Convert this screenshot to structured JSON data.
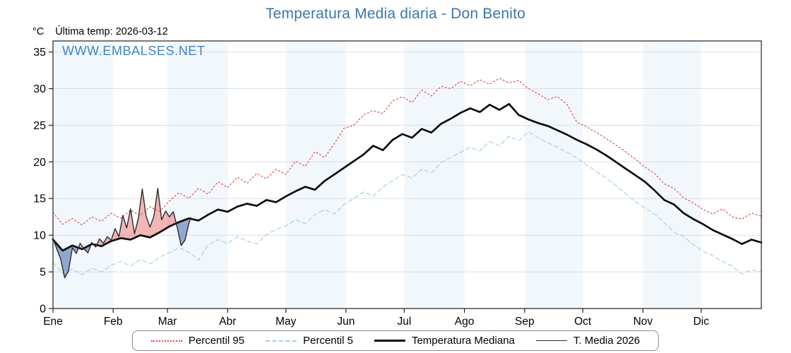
{
  "page": {
    "title": "Temperatura Media diaria - Don Benito",
    "unit_label": "°C",
    "last_temp_label": "Última temp: 2026-03-12",
    "watermark": "WWW.EMBALSES.NET"
  },
  "colors": {
    "title": "#3a76ad",
    "watermark": "#4285c4",
    "band": "#e9f2fa",
    "grid": "#d9dee3",
    "axis": "#222222",
    "fill_above": "rgba(230,110,110,0.5)",
    "fill_below": "rgba(90,125,185,0.65)"
  },
  "chart_data": {
    "type": "line",
    "title": "Temperatura Media diaria - Don Benito",
    "xlabel": "",
    "ylabel": "°C",
    "ylim": [
      0,
      36.5
    ],
    "y_ticks": [
      0,
      5,
      10,
      15,
      20,
      25,
      30,
      35
    ],
    "x_unit": "day-of-year",
    "x_range": [
      0,
      365
    ],
    "grid": "horizontal",
    "legend_position": "bottom",
    "categories": [
      "Ene",
      "Feb",
      "Mar",
      "Abr",
      "May",
      "Jun",
      "Jul",
      "Ago",
      "Sep",
      "Oct",
      "Nov",
      "Dic"
    ],
    "month_start_days": [
      0,
      31,
      59,
      90,
      120,
      151,
      181,
      212,
      243,
      273,
      304,
      334
    ],
    "series": [
      {
        "name": "Percentil 95",
        "style": "dotted",
        "color": "#d64545",
        "width": 1.1,
        "x": [
          0,
          5,
          10,
          15,
          20,
          25,
          30,
          35,
          40,
          45,
          50,
          55,
          60,
          65,
          70,
          75,
          80,
          85,
          90,
          95,
          100,
          105,
          110,
          115,
          120,
          125,
          130,
          135,
          140,
          145,
          150,
          155,
          160,
          165,
          170,
          175,
          180,
          185,
          190,
          195,
          200,
          205,
          210,
          215,
          220,
          225,
          230,
          235,
          240,
          245,
          250,
          255,
          260,
          265,
          270,
          275,
          280,
          285,
          290,
          295,
          300,
          305,
          310,
          315,
          320,
          325,
          330,
          335,
          340,
          345,
          350,
          355,
          360,
          365
        ],
        "y": [
          13.1,
          11.5,
          12.3,
          11.4,
          12.5,
          11.9,
          13.0,
          12.3,
          13.4,
          12.7,
          13.9,
          13.2,
          14.7,
          15.8,
          15.0,
          16.4,
          15.6,
          17.3,
          16.5,
          17.9,
          17.1,
          18.4,
          17.7,
          19.0,
          18.3,
          20.1,
          19.4,
          21.4,
          20.6,
          22.5,
          24.6,
          25.0,
          26.4,
          27.0,
          26.6,
          28.3,
          28.9,
          28.1,
          29.8,
          29.0,
          30.3,
          30.0,
          31.0,
          30.4,
          31.2,
          30.6,
          31.4,
          30.8,
          31.1,
          30.0,
          29.3,
          28.5,
          28.9,
          27.8,
          25.4,
          24.8,
          24.0,
          23.2,
          22.3,
          21.4,
          20.4,
          19.3,
          18.4,
          17.0,
          16.4,
          15.1,
          14.4,
          13.5,
          12.9,
          13.6,
          12.5,
          12.2,
          13.0,
          12.6
        ]
      },
      {
        "name": "Percentil 5",
        "style": "dashed",
        "color": "#a5d2e4",
        "width": 1.2,
        "x": [
          0,
          5,
          10,
          15,
          20,
          25,
          30,
          35,
          40,
          45,
          50,
          55,
          60,
          65,
          70,
          75,
          80,
          85,
          90,
          95,
          100,
          105,
          110,
          115,
          120,
          125,
          130,
          135,
          140,
          145,
          150,
          155,
          160,
          165,
          170,
          175,
          180,
          185,
          190,
          195,
          200,
          205,
          210,
          215,
          220,
          225,
          230,
          235,
          240,
          245,
          250,
          255,
          260,
          265,
          270,
          275,
          280,
          285,
          290,
          295,
          300,
          305,
          310,
          315,
          320,
          325,
          330,
          335,
          340,
          345,
          350,
          355,
          360,
          365
        ],
        "y": [
          6.3,
          4.8,
          5.4,
          4.6,
          5.5,
          5.0,
          5.9,
          6.4,
          5.8,
          6.7,
          6.1,
          7.0,
          7.6,
          8.3,
          7.7,
          6.6,
          8.7,
          9.4,
          8.9,
          9.8,
          9.2,
          8.8,
          10.1,
          10.8,
          11.3,
          12.1,
          11.6,
          12.8,
          13.5,
          12.9,
          14.2,
          15.0,
          15.9,
          15.3,
          16.6,
          17.4,
          18.3,
          17.8,
          19.0,
          18.5,
          19.9,
          20.6,
          21.3,
          22.0,
          21.5,
          22.8,
          22.2,
          23.5,
          22.9,
          24.1,
          23.3,
          22.6,
          22.0,
          21.3,
          20.5,
          19.6,
          18.7,
          17.8,
          16.8,
          15.7,
          14.6,
          13.7,
          12.9,
          11.7,
          10.4,
          9.8,
          8.7,
          7.8,
          7.2,
          6.4,
          5.8,
          4.7,
          5.3,
          5.0
        ]
      },
      {
        "name": "Temperatura Mediana",
        "style": "solid",
        "color": "#0d0d0d",
        "width": 2.7,
        "x": [
          0,
          5,
          10,
          15,
          20,
          25,
          30,
          35,
          40,
          45,
          50,
          55,
          60,
          65,
          70,
          75,
          80,
          85,
          90,
          95,
          100,
          105,
          110,
          115,
          120,
          125,
          130,
          135,
          140,
          145,
          150,
          155,
          160,
          165,
          170,
          175,
          180,
          185,
          190,
          195,
          200,
          205,
          210,
          215,
          220,
          225,
          230,
          235,
          240,
          245,
          250,
          255,
          260,
          265,
          270,
          275,
          280,
          285,
          290,
          295,
          300,
          305,
          310,
          315,
          320,
          325,
          330,
          335,
          340,
          345,
          350,
          355,
          360,
          365
        ],
        "y": [
          9.4,
          7.9,
          8.6,
          8.1,
          8.8,
          8.5,
          9.2,
          9.6,
          9.4,
          10.0,
          9.7,
          10.4,
          11.2,
          11.8,
          12.3,
          12.0,
          12.8,
          13.5,
          13.2,
          13.9,
          14.3,
          14.0,
          14.8,
          14.5,
          15.3,
          16.0,
          16.6,
          16.2,
          17.4,
          18.3,
          19.2,
          20.1,
          21.0,
          22.2,
          21.6,
          23.0,
          23.8,
          23.3,
          24.5,
          24.0,
          25.2,
          25.9,
          26.7,
          27.3,
          26.8,
          27.8,
          27.1,
          27.9,
          26.4,
          25.8,
          25.3,
          24.9,
          24.3,
          23.7,
          23.0,
          22.4,
          21.7,
          20.9,
          20.0,
          19.1,
          18.2,
          17.3,
          16.1,
          14.8,
          14.2,
          13.0,
          12.2,
          11.5,
          10.7,
          10.1,
          9.5,
          8.8,
          9.4,
          9.0
        ]
      },
      {
        "name": "T. Media 2026",
        "style": "solid",
        "color": "#2b2b2b",
        "width": 1.4,
        "x": [
          0,
          2,
          4,
          6,
          8,
          10,
          12,
          14,
          16,
          18,
          20,
          22,
          24,
          26,
          28,
          30,
          32,
          34,
          36,
          38,
          40,
          42,
          44,
          46,
          48,
          50,
          52,
          54,
          56,
          58,
          60,
          62,
          64,
          66,
          68,
          70,
          71
        ],
        "y": [
          9.6,
          8.1,
          6.7,
          4.2,
          5.1,
          8.3,
          7.5,
          8.9,
          8.1,
          7.6,
          9.0,
          8.4,
          9.5,
          8.9,
          9.8,
          9.3,
          10.9,
          9.8,
          12.7,
          11.0,
          13.6,
          10.2,
          12.3,
          16.3,
          12.6,
          11.1,
          12.6,
          16.4,
          12.1,
          13.3,
          12.5,
          13.2,
          11.1,
          8.6,
          9.3,
          11.6,
          12.4
        ]
      }
    ],
    "fill_between": {
      "upper_series": "T. Media 2026",
      "baseline_series": "Temperatura Mediana",
      "above_color": "rgba(230,110,110,0.5)",
      "below_color": "rgba(90,125,185,0.65)"
    },
    "legend": [
      "Percentil 95",
      "Percentil 5",
      "Temperatura Mediana",
      "T. Media 2026"
    ]
  }
}
